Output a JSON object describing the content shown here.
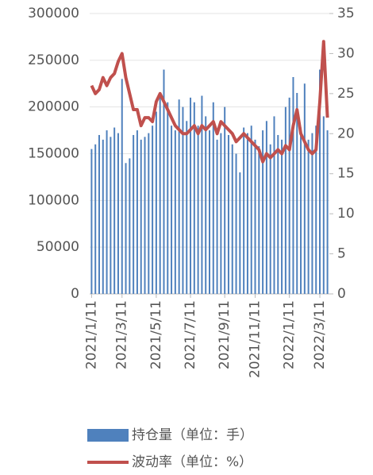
{
  "chart_data": {
    "type": "bar-line",
    "categories": [
      "2021/1/11",
      null,
      null,
      null,
      null,
      null,
      null,
      null,
      "2021/3/11",
      null,
      null,
      null,
      null,
      null,
      null,
      null,
      null,
      "2021/5/11",
      null,
      null,
      null,
      null,
      null,
      null,
      null,
      null,
      "2021/7/11",
      null,
      null,
      null,
      null,
      null,
      null,
      null,
      null,
      "2021/9/11",
      null,
      null,
      null,
      null,
      null,
      null,
      null,
      "2021/11/11",
      null,
      null,
      null,
      null,
      null,
      null,
      null,
      null,
      "2022/1/11",
      null,
      null,
      null,
      null,
      null,
      null,
      null,
      "2022/3/11",
      null,
      null
    ],
    "series": [
      {
        "name": "持仓量（单位：手）",
        "type": "bar",
        "color": "#4f81bd",
        "values": [
          155000,
          160000,
          170000,
          165000,
          175000,
          168000,
          178000,
          172000,
          230000,
          140000,
          145000,
          170000,
          175000,
          165000,
          168000,
          172000,
          180000,
          195000,
          210000,
          240000,
          205000,
          180000,
          175000,
          208000,
          200000,
          185000,
          210000,
          205000,
          180000,
          212000,
          190000,
          175000,
          205000,
          165000,
          172000,
          200000,
          170000,
          160000,
          150000,
          130000,
          178000,
          172000,
          180000,
          165000,
          158000,
          175000,
          185000,
          160000,
          190000,
          170000,
          165000,
          200000,
          210000,
          232000,
          215000,
          178000,
          225000,
          165000,
          172000,
          180000,
          240000,
          190000,
          175000
        ]
      },
      {
        "name": "波动率（单位：%）",
        "type": "line",
        "axis": "y2",
        "color": "#c0504d",
        "values": [
          26,
          25,
          25.5,
          27,
          26,
          27,
          27.5,
          29,
          30,
          27,
          25,
          23,
          23,
          21,
          22,
          22,
          21.5,
          24,
          25,
          24,
          23,
          22,
          21,
          20.5,
          20,
          20,
          20.5,
          21,
          20,
          21,
          20.5,
          21,
          21.5,
          20,
          21.5,
          21,
          20.5,
          20,
          19,
          19.5,
          20,
          19.5,
          19,
          18.5,
          18,
          16.5,
          17.5,
          17,
          17.5,
          18,
          17.5,
          18.5,
          18,
          21,
          23,
          20,
          19,
          18,
          17.5,
          18,
          24,
          31.5,
          22
        ]
      }
    ],
    "ylim": [
      0,
      300000
    ],
    "yticks": [
      0,
      50000,
      100000,
      150000,
      200000,
      250000,
      300000
    ],
    "y2lim": [
      0,
      35
    ],
    "y2ticks": [
      0,
      5,
      10,
      15,
      20,
      25,
      30,
      35
    ],
    "grid": true,
    "legend": "bottom"
  }
}
